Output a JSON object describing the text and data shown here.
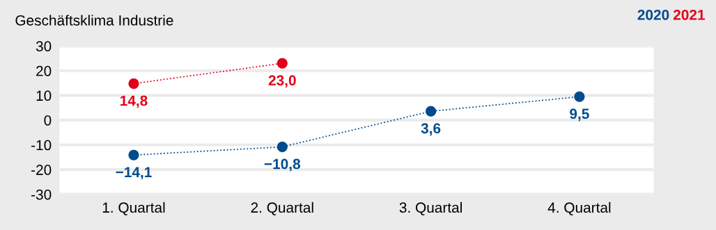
{
  "chart_data": {
    "type": "line",
    "title": "Geschäftsklima Industrie",
    "categories": [
      "1. Quartal",
      "2. Quartal",
      "3. Quartal",
      "4. Quartal"
    ],
    "series": [
      {
        "name": "2020",
        "color": "#004b8d",
        "values": [
          -14.1,
          -10.8,
          3.6,
          9.5
        ],
        "value_labels": [
          "−14,1",
          "−10,8",
          "3,6",
          "9,5"
        ]
      },
      {
        "name": "2021",
        "color": "#e2001a",
        "values": [
          14.8,
          23.0,
          null,
          null
        ],
        "value_labels": [
          "14,8",
          "23,0",
          null,
          null
        ]
      }
    ],
    "ylim": [
      -30,
      30
    ],
    "yticks": [
      {
        "value": -30,
        "label": "-30"
      },
      {
        "value": -20,
        "label": "-20"
      },
      {
        "value": -10,
        "label": "-10"
      },
      0,
      10,
      20,
      30
    ],
    "grid": "y",
    "legend": "top right",
    "marker": "circle",
    "line_style": "dotted"
  }
}
